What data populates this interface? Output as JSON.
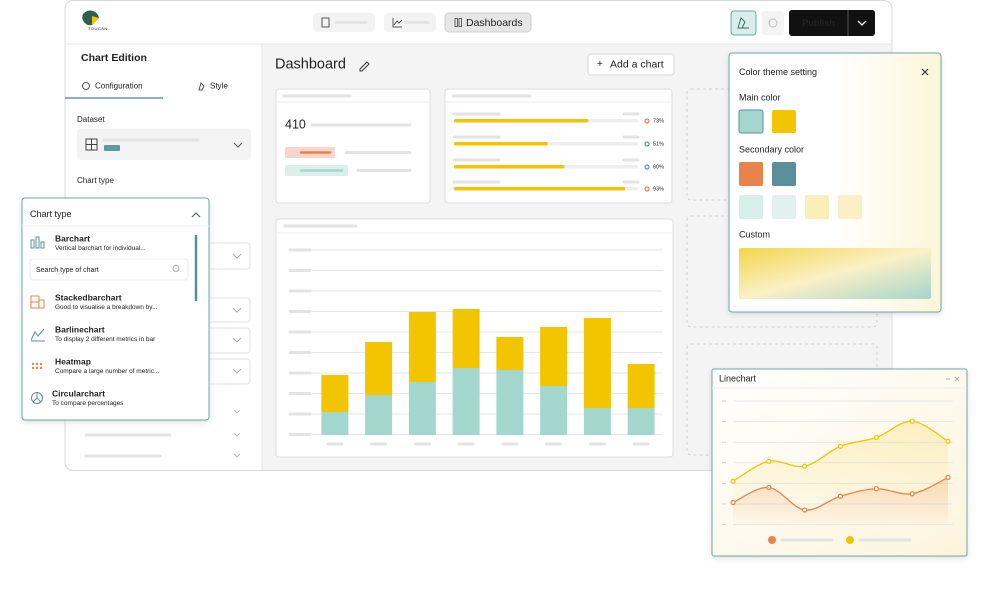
{
  "logo": "TOUCAN",
  "nav": {
    "dashboards": "Dashboards",
    "publish": "Publish"
  },
  "sidebar": {
    "title": "Chart Edition",
    "tabs": [
      "Configuration",
      "Style"
    ],
    "dataset_label": "Dataset",
    "chart_type_label": "Chart type"
  },
  "chart_type_popup": {
    "title": "Chart type",
    "search_placeholder": "Search type of chart",
    "items": [
      {
        "name": "Barchart",
        "description": "Vertical barchart for individual..."
      },
      {
        "name": "Stackedbarchart",
        "description": "Good to visualise a breakdown by..."
      },
      {
        "name": "Barlinechart",
        "description": "To display 2 different metrics in bar"
      },
      {
        "name": "Heatmap",
        "description": "Compare a large number of metric..."
      },
      {
        "name": "Circularchart",
        "description": "To compare percentages"
      }
    ]
  },
  "dashboard": {
    "title": "Dashboard",
    "add_button": "Add a chart",
    "kpi": {
      "value": 410
    },
    "progress": [
      {
        "value": 73,
        "label": "73%",
        "color": "#e8834a"
      },
      {
        "value": 51,
        "label": "51%",
        "color": "#5e9aa5"
      },
      {
        "value": 60,
        "label": "60%",
        "color": "#5e9aa5"
      },
      {
        "value": 93,
        "label": "93%",
        "color": "#e8834a"
      }
    ],
    "bar_chart": {
      "type": "bar",
      "stacked": true,
      "ylim": [
        0,
        140
      ],
      "series": [
        {
          "color": "#a3d6cc",
          "values": [
            23,
            40,
            53,
            67,
            65,
            49,
            27,
            27
          ]
        },
        {
          "color": "#f2c500",
          "values": [
            37,
            53,
            70,
            59,
            33,
            59,
            90,
            44
          ]
        }
      ]
    }
  },
  "color_theme": {
    "title": "Color theme setting",
    "main_label": "Main color",
    "main_colors": [
      "#a3d6cc",
      "#f2c500"
    ],
    "secondary_label": "Secondary color",
    "secondary_colors": [
      "#e8834a",
      "#5b8f9a",
      "#d8eee8",
      "#e3f1ee",
      "#fbefb7",
      "#fbefc6"
    ],
    "custom_label": "Custom"
  },
  "line_chart": {
    "type": "line",
    "title": "Linechart",
    "ylim": [
      0,
      100
    ],
    "series": [
      {
        "color": "#f2c500",
        "values": [
          35,
          51,
          47,
          63,
          70,
          83,
          67
        ]
      },
      {
        "color": "#e8834a",
        "values": [
          18,
          30,
          12,
          23,
          29,
          25,
          38
        ]
      }
    ]
  }
}
